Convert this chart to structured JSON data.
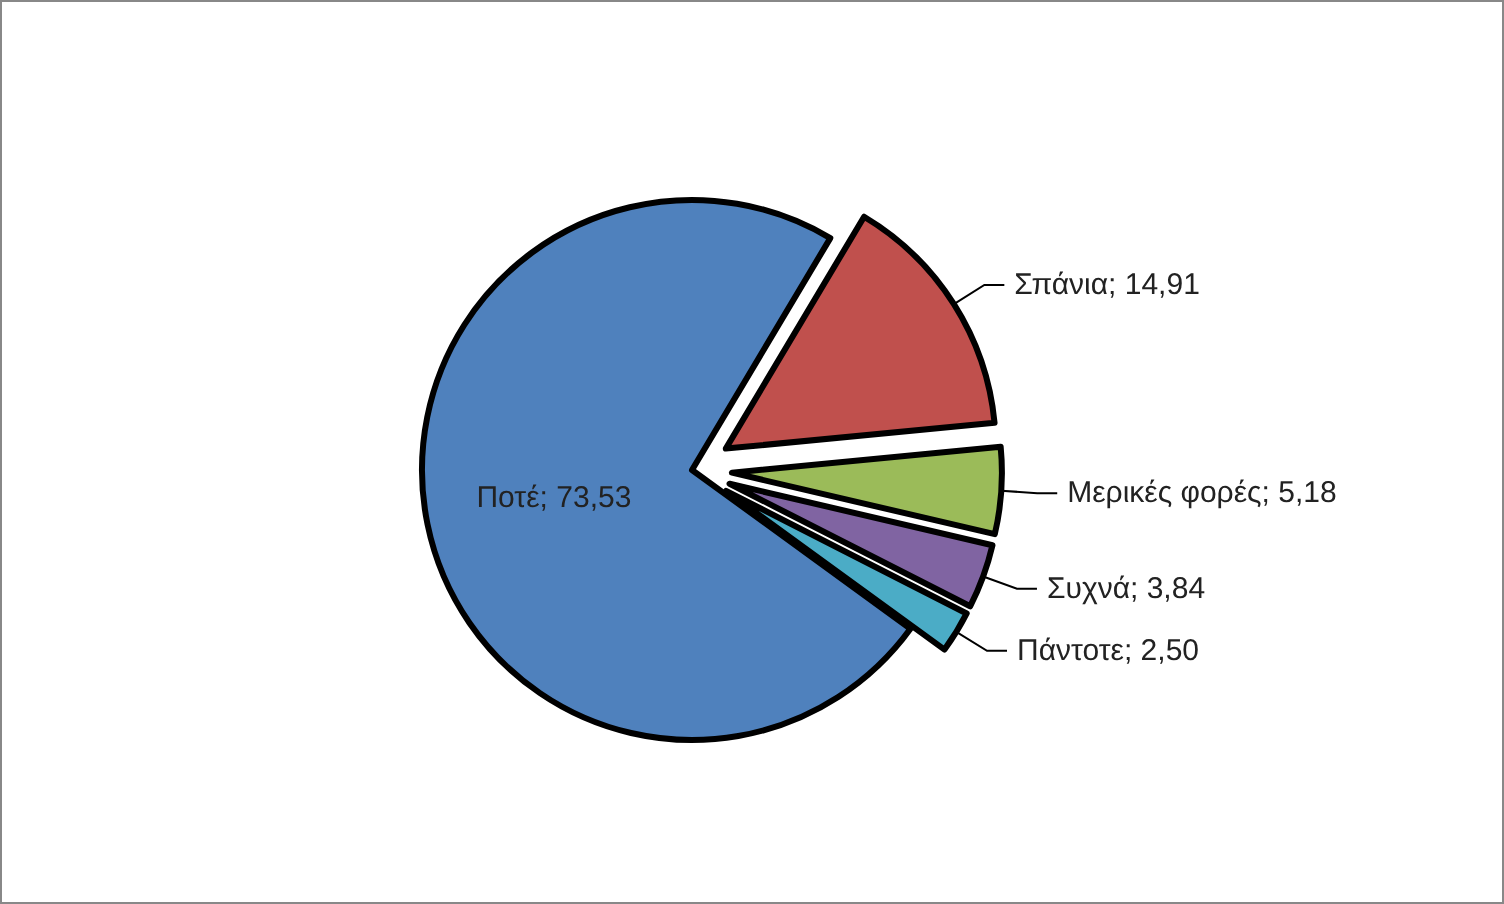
{
  "chart_data": {
    "type": "pie",
    "categories": [
      "Ποτέ",
      "Σπάνια",
      "Μερικές φορές",
      "Συχνά",
      "Πάντοτε"
    ],
    "values": [
      73.53,
      14.91,
      5.18,
      3.84,
      2.5
    ],
    "value_labels": [
      "73,53",
      "14,91",
      "5,18",
      "3,84",
      "2,50"
    ],
    "colors": [
      "#4f81bd",
      "#c0504d",
      "#9bbb59",
      "#8064a2",
      "#4bacc6"
    ],
    "legend": false
  }
}
